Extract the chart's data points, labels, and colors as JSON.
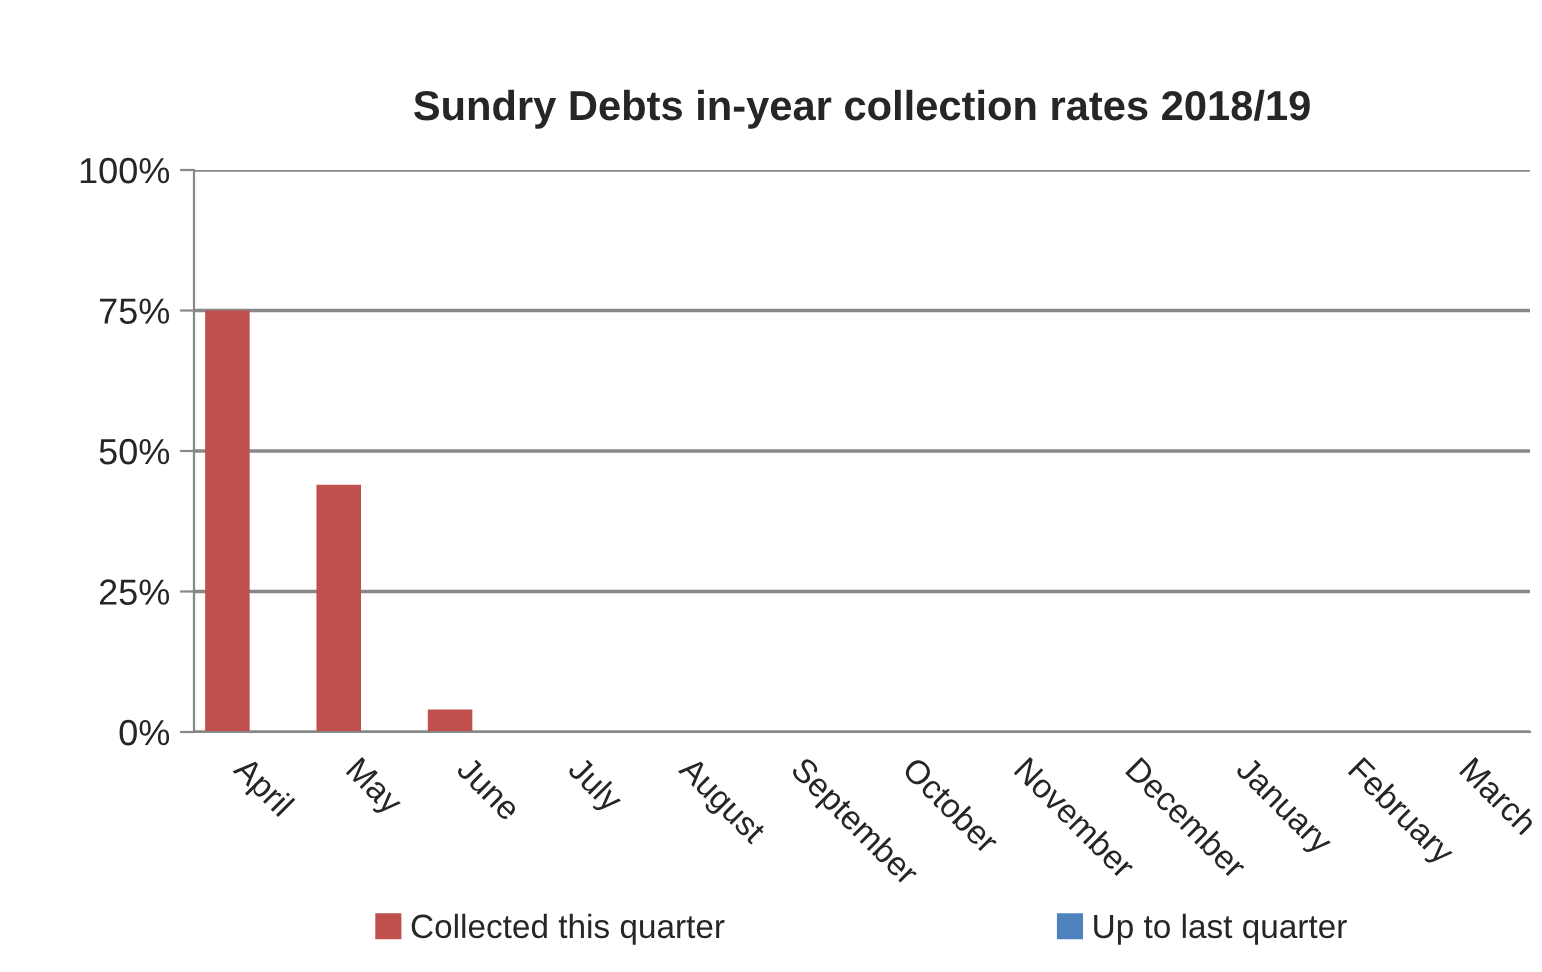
{
  "chart_data": {
    "type": "bar",
    "title": "Sundry Debts in-year collection rates 2018/19",
    "categories": [
      "April",
      "May",
      "June",
      "July",
      "August",
      "September",
      "October",
      "November",
      "December",
      "January",
      "February",
      "March"
    ],
    "series": [
      {
        "name": "Collected this quarter",
        "color": "#c0504d",
        "values": [
          75,
          44,
          4,
          null,
          null,
          null,
          null,
          null,
          null,
          null,
          null,
          null
        ]
      },
      {
        "name": "Up to last quarter",
        "color": "#4f81bd",
        "values": [
          null,
          null,
          null,
          null,
          null,
          null,
          null,
          null,
          null,
          null,
          null,
          null
        ]
      }
    ],
    "ylim": [
      0,
      100
    ],
    "yticks": [
      {
        "value": 0,
        "label": "0%"
      },
      {
        "value": 25,
        "label": "25%"
      },
      {
        "value": 50,
        "label": "50%"
      },
      {
        "value": 75,
        "label": "75%"
      },
      {
        "value": 100,
        "label": "100%"
      }
    ],
    "grid": "y",
    "legend": "bottom"
  }
}
